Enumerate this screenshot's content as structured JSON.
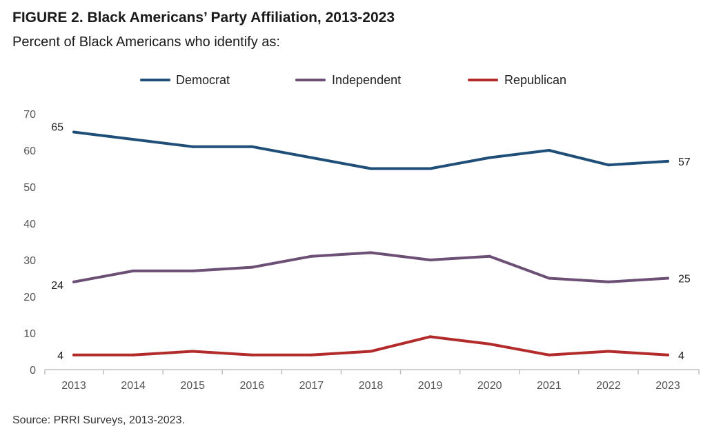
{
  "title": "FIGURE 2.  Black Americans’ Party Affiliation, 2013-2023",
  "subtitle": "Percent of Black Americans who identify as:",
  "source": "Source: PRRI Surveys, 2013-2023.",
  "chart_data": {
    "type": "line",
    "title": "FIGURE 2.  Black Americans’ Party Affiliation, 2013-2023",
    "subtitle": "Percent of Black Americans who identify as:",
    "x": [
      "2013",
      "2014",
      "2015",
      "2016",
      "2017",
      "2018",
      "2019",
      "2020",
      "2021",
      "2022",
      "2023"
    ],
    "ylim": [
      0,
      70
    ],
    "yticks": [
      0,
      10,
      20,
      30,
      40,
      50,
      60,
      70
    ],
    "grid": false,
    "legend_position": "top",
    "series": [
      {
        "name": "Democrat",
        "color": "#1f4e79",
        "values": [
          65,
          63,
          61,
          61,
          58,
          55,
          55,
          58,
          60,
          56,
          57
        ],
        "start_label": "65",
        "end_label": "57"
      },
      {
        "name": "Independent",
        "color": "#6b4f75",
        "values": [
          24,
          27,
          27,
          28,
          31,
          32,
          30,
          31,
          25,
          24,
          25
        ],
        "start_label": "24",
        "end_label": "25"
      },
      {
        "name": "Republican",
        "color": "#b22a2a",
        "values": [
          4,
          4,
          5,
          4,
          4,
          5,
          9,
          7,
          4,
          5,
          4
        ],
        "start_label": "4",
        "end_label": "4"
      }
    ]
  }
}
